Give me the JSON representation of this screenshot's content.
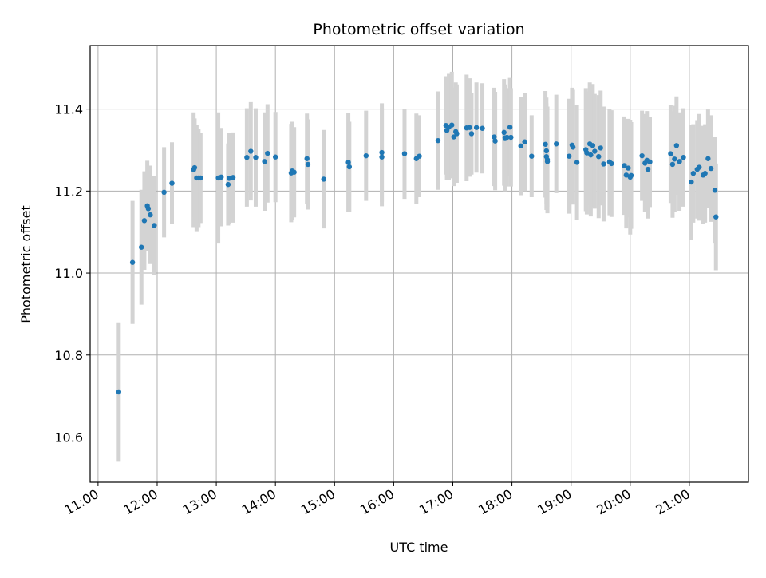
{
  "chart_data": {
    "type": "scatter",
    "title": "Photometric offset variation",
    "xlabel": "UTC time",
    "ylabel": "Photometric offset",
    "xlim": [
      "10:52",
      "22:00"
    ],
    "ylim": [
      10.49,
      11.555
    ],
    "grid": true,
    "error_bar_color": "#d3d3d3",
    "point_color": "#1f77b4",
    "x_ticks": [
      "11:00",
      "12:00",
      "13:00",
      "14:00",
      "15:00",
      "16:00",
      "17:00",
      "18:00",
      "19:00",
      "20:00",
      "21:00"
    ],
    "y_ticks": [
      "10.6",
      "10.8",
      "11.0",
      "11.2",
      "11.4"
    ],
    "series": [
      {
        "x": [
          "11:21",
          "11:35",
          "11:44",
          "11:47",
          "11:50",
          "11:51",
          "11:53",
          "11:57",
          "12:07",
          "12:15",
          "12:37",
          "12:38",
          "12:40",
          "12:42",
          "12:44",
          "13:02",
          "13:05",
          "13:12",
          "13:13",
          "13:17",
          "13:31",
          "13:35",
          "13:40",
          "13:49",
          "13:52",
          "14:00",
          "14:16",
          "14:17",
          "14:19",
          "14:32",
          "14:33",
          "14:49",
          "15:14",
          "15:15",
          "15:32",
          "15:48",
          "15:48",
          "16:11",
          "16:23",
          "16:26",
          "16:45",
          "16:53",
          "16:54",
          "16:56",
          "16:59",
          "17:01",
          "17:03",
          "17:04",
          "17:14",
          "17:17",
          "17:19",
          "17:24",
          "17:30",
          "17:42",
          "17:43",
          "17:52",
          "17:53",
          "17:55",
          "17:58",
          "17:59",
          "18:09",
          "18:13",
          "18:20",
          "18:34",
          "18:35",
          "18:35",
          "18:36",
          "18:36",
          "18:45",
          "18:58",
          "19:01",
          "19:02",
          "19:06",
          "19:15",
          "19:16",
          "19:19",
          "19:20",
          "19:22",
          "19:24",
          "19:28",
          "19:30",
          "19:33",
          "19:39",
          "19:41",
          "19:54",
          "19:56",
          "19:58",
          "20:00",
          "20:01",
          "20:12",
          "20:15",
          "20:17",
          "20:18",
          "20:20",
          "20:41",
          "20:43",
          "20:45",
          "20:47",
          "20:50",
          "20:54",
          "21:02",
          "21:04",
          "21:08",
          "21:10",
          "21:14",
          "21:16",
          "21:19",
          "21:22",
          "21:26",
          "21:27"
        ],
        "y": [
          10.71,
          11.026,
          11.063,
          11.128,
          11.164,
          11.157,
          11.142,
          11.116,
          11.197,
          11.219,
          11.252,
          11.257,
          11.232,
          11.232,
          11.232,
          11.232,
          11.234,
          11.216,
          11.231,
          11.233,
          11.282,
          11.297,
          11.282,
          11.272,
          11.292,
          11.283,
          11.244,
          11.249,
          11.246,
          11.279,
          11.265,
          11.229,
          11.27,
          11.259,
          11.286,
          11.283,
          11.294,
          11.291,
          11.279,
          11.285,
          11.323,
          11.36,
          11.348,
          11.356,
          11.361,
          11.332,
          11.345,
          11.34,
          11.354,
          11.355,
          11.34,
          11.355,
          11.353,
          11.332,
          11.322,
          11.343,
          11.33,
          11.331,
          11.356,
          11.331,
          11.31,
          11.32,
          11.285,
          11.314,
          11.298,
          11.284,
          11.276,
          11.272,
          11.315,
          11.285,
          11.312,
          11.307,
          11.27,
          11.301,
          11.293,
          11.315,
          11.288,
          11.311,
          11.297,
          11.284,
          11.305,
          11.266,
          11.271,
          11.267,
          11.262,
          11.239,
          11.256,
          11.234,
          11.238,
          11.286,
          11.268,
          11.275,
          11.253,
          11.271,
          11.291,
          11.265,
          11.278,
          11.311,
          11.272,
          11.282,
          11.222,
          11.243,
          11.253,
          11.258,
          11.239,
          11.243,
          11.279,
          11.255,
          11.202,
          11.137
        ],
        "yerr": [
          0.17,
          0.15,
          0.14,
          0.12,
          0.11,
          0.1,
          0.12,
          0.12,
          0.11,
          0.1,
          0.14,
          0.12,
          0.13,
          0.12,
          0.11,
          0.16,
          0.12,
          0.1,
          0.11,
          0.11,
          0.12,
          0.12,
          0.12,
          0.12,
          0.12,
          0.11,
          0.12,
          0.12,
          0.11,
          0.11,
          0.11,
          0.12,
          0.12,
          0.11,
          0.11,
          0.12,
          0.12,
          0.11,
          0.11,
          0.1,
          0.12,
          0.12,
          0.12,
          0.13,
          0.13,
          0.12,
          0.12,
          0.12,
          0.13,
          0.12,
          0.1,
          0.11,
          0.11,
          0.12,
          0.12,
          0.13,
          0.13,
          0.12,
          0.12,
          0.12,
          0.12,
          0.12,
          0.1,
          0.13,
          0.13,
          0.13,
          0.13,
          0.11,
          0.12,
          0.14,
          0.14,
          0.14,
          0.14,
          0.15,
          0.15,
          0.15,
          0.15,
          0.15,
          0.14,
          0.15,
          0.14,
          0.14,
          0.13,
          0.13,
          0.12,
          0.13,
          0.12,
          0.14,
          0.13,
          0.11,
          0.12,
          0.12,
          0.12,
          0.11,
          0.12,
          0.13,
          0.13,
          0.12,
          0.12,
          0.12,
          0.14,
          0.12,
          0.12,
          0.13,
          0.12,
          0.12,
          0.12,
          0.13,
          0.13,
          0.13
        ]
      }
    ]
  }
}
